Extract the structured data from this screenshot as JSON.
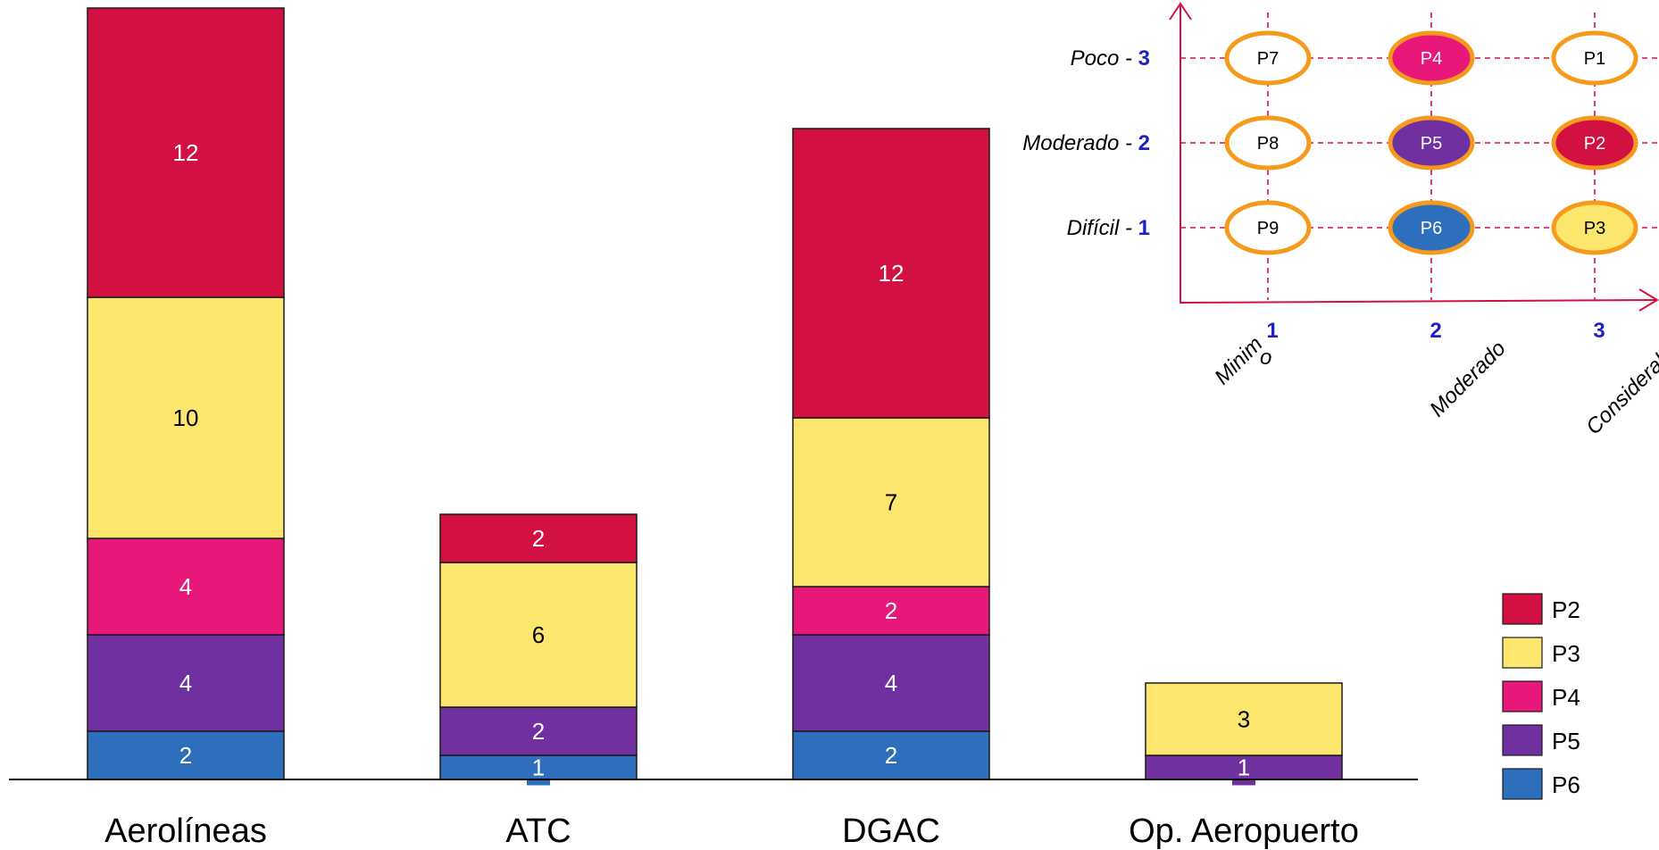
{
  "chart_data": [
    {
      "type": "bar",
      "stacked": true,
      "categories": [
        "Aerolíneas",
        "ATC",
        "DGAC",
        "Op. Aeropuerto"
      ],
      "series": [
        {
          "name": "P6",
          "color": "#2e6fbd",
          "values": [
            2,
            1,
            2,
            0
          ]
        },
        {
          "name": "P5",
          "color": "#7030a0",
          "values": [
            4,
            2,
            4,
            1
          ]
        },
        {
          "name": "P4",
          "color": "#e8177a",
          "values": [
            4,
            0,
            2,
            0
          ]
        },
        {
          "name": "P3",
          "color": "#fde66e",
          "values": [
            10,
            6,
            7,
            3
          ]
        },
        {
          "name": "P2",
          "color": "#d21142",
          "values": [
            12,
            2,
            12,
            0
          ]
        }
      ],
      "legend_order": [
        "P2",
        "P3",
        "P4",
        "P5",
        "P6"
      ],
      "legend_position": "bottom-right",
      "grid": false
    },
    {
      "type": "matrix",
      "rows": [
        {
          "label": "Poco",
          "num": "3"
        },
        {
          "label": "Moderado",
          "num": "2"
        },
        {
          "label": "Difícil",
          "num": "1"
        }
      ],
      "cols": [
        {
          "label": "Minim",
          "suffix": "o",
          "num": "1"
        },
        {
          "label": "Moderado",
          "num": "2"
        },
        {
          "label": "Considerable",
          "num": "3"
        }
      ],
      "cells": [
        [
          {
            "label": "P7",
            "fill": "#ffffff"
          },
          {
            "label": "P4",
            "fill": "#e8177a"
          },
          {
            "label": "P1",
            "fill": "#ffffff"
          }
        ],
        [
          {
            "label": "P8",
            "fill": "#ffffff"
          },
          {
            "label": "P5",
            "fill": "#7030a0"
          },
          {
            "label": "P2",
            "fill": "#d21142"
          }
        ],
        [
          {
            "label": "P9",
            "fill": "#ffffff"
          },
          {
            "label": "P6",
            "fill": "#2e6fbd"
          },
          {
            "label": "P3",
            "fill": "#fde66e"
          }
        ]
      ],
      "axis_color": "#d21142",
      "ring_color": "#f59a1c"
    }
  ]
}
